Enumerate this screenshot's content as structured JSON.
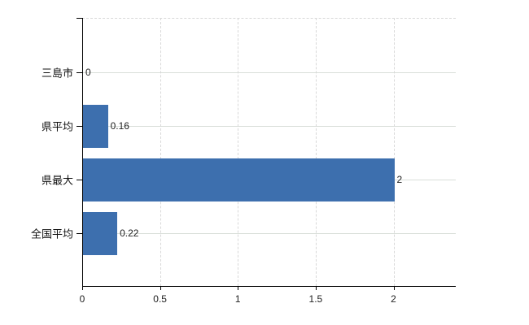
{
  "chart_data": {
    "type": "bar",
    "orientation": "horizontal",
    "title": "",
    "xlabel": "",
    "ylabel": "",
    "categories": [
      "三島市",
      "県平均",
      "県最大",
      "全国平均"
    ],
    "values": [
      0,
      0.16,
      2,
      0.22
    ],
    "value_labels": [
      "0",
      "0.16",
      "2",
      "0.22"
    ],
    "x_ticks": [
      0,
      0.5,
      1,
      1.5,
      2
    ],
    "x_tick_labels": [
      "0",
      "0.5",
      "1",
      "1.5",
      "2"
    ],
    "xlim": [
      0,
      2.4
    ],
    "legend": false,
    "grid": true,
    "colors": {
      "bar": "#3d6fae",
      "axis": "#000000",
      "gridline_horizontal": "#d9ded9",
      "gridline_vertical": "#d8d8d8",
      "label_text": "#111111",
      "background": "#ffffff"
    }
  }
}
